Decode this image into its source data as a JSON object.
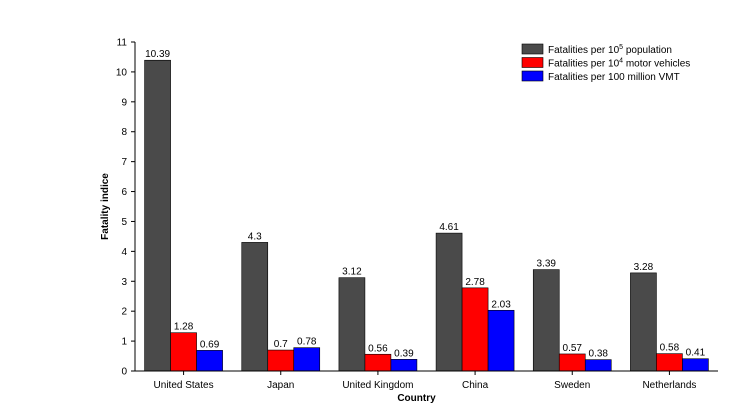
{
  "chart_data": {
    "type": "bar",
    "title": "",
    "xlabel": "Country",
    "ylabel": "Fatality indice",
    "ylim": [
      0,
      11
    ],
    "yticks": [
      "0",
      "1",
      "2",
      "3",
      "4",
      "5",
      "6",
      "7",
      "8",
      "9",
      "10",
      "11"
    ],
    "categories": [
      "United States",
      "Japan",
      "United Kingdom",
      "China",
      "Sweden",
      "Netherlands"
    ],
    "series": [
      {
        "name": "Fatalities per 10^5 population",
        "legend_base": "Fatalities per 10",
        "legend_sup": "5",
        "legend_rest": " population",
        "color": "#4a4a4a",
        "values": [
          10.39,
          4.3,
          3.12,
          4.61,
          3.39,
          3.28
        ],
        "labels": [
          "10.39",
          "4.3",
          "3.12",
          "4.61",
          "3.39",
          "3.28"
        ]
      },
      {
        "name": "Fatalities per 10^4 motor vehicles",
        "legend_base": "Fatalities per 10",
        "legend_sup": "4",
        "legend_rest": " motor vehicles",
        "color": "#ff0000",
        "values": [
          1.28,
          0.7,
          0.56,
          2.78,
          0.57,
          0.58
        ],
        "labels": [
          "1.28",
          "0.7",
          "0.56",
          "2.78",
          "0.57",
          "0.58"
        ]
      },
      {
        "name": "Fatalities per 100 million VMT",
        "legend_base": "Fatalities per 100 million VMT",
        "legend_sup": "",
        "legend_rest": "",
        "color": "#0000ff",
        "values": [
          0.69,
          0.78,
          0.39,
          2.03,
          0.38,
          0.41
        ],
        "labels": [
          "0.69",
          "0.78",
          "0.39",
          "2.03",
          "0.38",
          "0.41"
        ]
      }
    ],
    "legend_position": "top-right",
    "grid": false
  }
}
